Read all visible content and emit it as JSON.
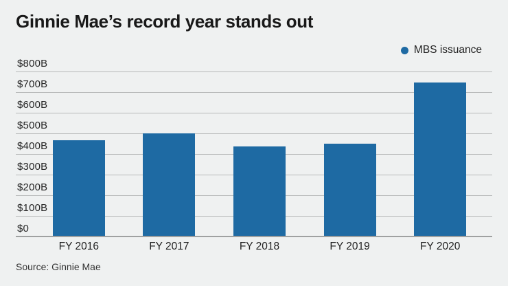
{
  "title": "Ginnie Mae’s record year stands out",
  "legend": {
    "label": "MBS issuance"
  },
  "source": "Source: Ginnie Mae",
  "colors": {
    "background": "#eff1f1",
    "bar": "#1e6aa3",
    "gridline": "#b7b9b9",
    "axis_line": "#9fa1a1",
    "title_text": "#191919",
    "tick_text": "#262626"
  },
  "chart_data": {
    "type": "bar",
    "title": "Ginnie Mae’s record year stands out",
    "series_name": "MBS issuance",
    "categories": [
      "FY 2016",
      "FY 2017",
      "FY 2018",
      "FY 2019",
      "FY 2020"
    ],
    "values": [
      470,
      505,
      440,
      455,
      750
    ],
    "unit": "billions of US dollars",
    "xlabel": "",
    "ylabel": "",
    "ylim": [
      0,
      800
    ],
    "ytick_step": 100,
    "ytick_labels": [
      "$0",
      "$100B",
      "$200B",
      "$300B",
      "$400B",
      "$500B",
      "$600B",
      "$700B",
      "$800B"
    ],
    "grid": true,
    "legend_position": "top-right",
    "source": "Source: Ginnie Mae"
  }
}
